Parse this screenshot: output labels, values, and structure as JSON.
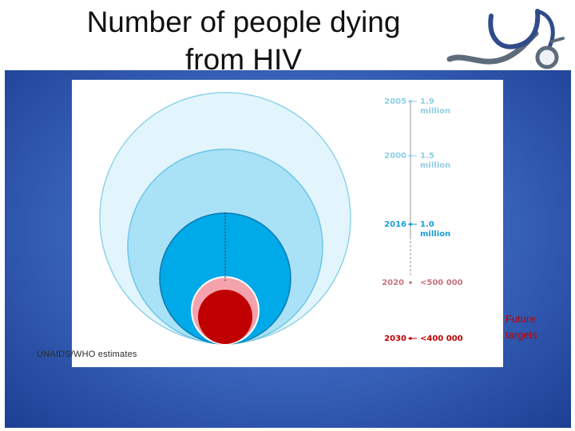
{
  "title": {
    "line1": "Number of people dying",
    "line2": "from HIV"
  },
  "source": "UNAIDS/WHO estimates",
  "future_targets": {
    "line1": "Future",
    "line2": "targets"
  },
  "timeline": [
    {
      "year": "2005",
      "value_line1": "1.9",
      "value_line2": "million",
      "color": "#8fcde6"
    },
    {
      "year": "2000",
      "value_line1": "1.5",
      "value_line2": "million",
      "color": "#8fcde6"
    },
    {
      "year": "2016",
      "value_line1": "1.0",
      "value_line2": "million",
      "color": "#1a9bd7"
    },
    {
      "year": "2020",
      "value_line1": "<500 000",
      "value_line2": "",
      "color": "#c7747e"
    },
    {
      "year": "2030",
      "value_line1": "<400 000",
      "value_line2": "",
      "color": "#c00000"
    }
  ],
  "colors": {
    "circle_2005": "#e3f5fc",
    "circle_2000": "#a9e1f6",
    "circle_2016": "#00a9e7",
    "circle_2020": "#f4a3ad",
    "circle_2030": "#c00000",
    "panel_blue": "#3d68c0"
  },
  "icons": {
    "decor": "stethoscope-icon"
  }
}
